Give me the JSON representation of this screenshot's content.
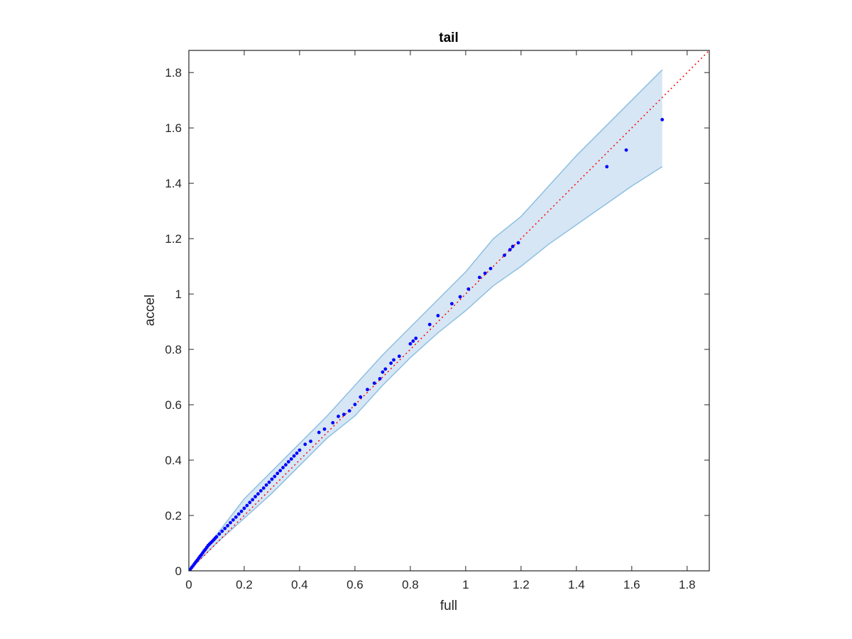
{
  "chart_data": {
    "type": "scatter",
    "title": "tail",
    "xlabel": "full",
    "ylabel": "accel",
    "xlim": [
      0,
      1.88
    ],
    "ylim": [
      0,
      1.88
    ],
    "xticks": [
      "0",
      "0.2",
      "0.4",
      "0.6",
      "0.8",
      "1",
      "1.2",
      "1.4",
      "1.6",
      "1.8"
    ],
    "yticks": [
      "0",
      "0.2",
      "0.4",
      "0.6",
      "0.8",
      "1",
      "1.2",
      "1.4",
      "1.6",
      "1.8"
    ],
    "grid": false,
    "colors": {
      "points": "#0000ff",
      "reference_line": "#ff0000",
      "band_fill": "#d6e6f4",
      "band_edge": "#8ebfe2"
    },
    "reference_line": {
      "x": [
        0,
        1.88
      ],
      "y": [
        0,
        1.88
      ]
    },
    "band": {
      "x": [
        0,
        0.05,
        0.1,
        0.2,
        0.3,
        0.4,
        0.5,
        0.6,
        0.7,
        0.8,
        0.9,
        1.0,
        1.1,
        1.2,
        1.3,
        1.4,
        1.5,
        1.6,
        1.71
      ],
      "upper": [
        0,
        0.07,
        0.13,
        0.26,
        0.36,
        0.46,
        0.56,
        0.67,
        0.78,
        0.88,
        0.98,
        1.08,
        1.2,
        1.28,
        1.39,
        1.5,
        1.6,
        1.7,
        1.81
      ],
      "lower": [
        0,
        0.05,
        0.1,
        0.19,
        0.28,
        0.38,
        0.48,
        0.56,
        0.67,
        0.77,
        0.86,
        0.94,
        1.03,
        1.1,
        1.18,
        1.25,
        1.32,
        1.39,
        1.46
      ]
    },
    "series": [
      {
        "x": [
          0.005,
          0.01,
          0.015,
          0.02,
          0.025,
          0.03,
          0.035,
          0.04,
          0.045,
          0.05,
          0.055,
          0.06,
          0.065,
          0.07,
          0.075,
          0.08,
          0.085,
          0.09,
          0.095,
          0.1,
          0.11,
          0.12,
          0.13,
          0.14,
          0.15,
          0.16,
          0.17,
          0.18,
          0.19,
          0.2,
          0.21,
          0.22,
          0.23,
          0.24,
          0.25,
          0.26,
          0.27,
          0.28,
          0.29,
          0.3,
          0.31,
          0.32,
          0.33,
          0.34,
          0.35,
          0.36,
          0.37,
          0.38,
          0.39,
          0.4,
          0.42,
          0.44,
          0.47,
          0.49,
          0.52,
          0.54,
          0.56,
          0.58,
          0.6,
          0.62,
          0.645,
          0.67,
          0.69,
          0.7,
          0.71,
          0.73,
          0.74,
          0.76,
          0.8,
          0.81,
          0.82,
          0.87,
          0.9,
          0.95,
          0.98,
          1.01,
          1.05,
          1.07,
          1.09,
          1.14,
          1.16,
          1.17,
          1.19,
          1.51,
          1.58,
          1.71
        ],
        "y": [
          0.005,
          0.012,
          0.018,
          0.025,
          0.032,
          0.038,
          0.045,
          0.052,
          0.058,
          0.065,
          0.072,
          0.078,
          0.085,
          0.092,
          0.097,
          0.102,
          0.107,
          0.112,
          0.118,
          0.123,
          0.133,
          0.143,
          0.153,
          0.163,
          0.174,
          0.184,
          0.194,
          0.205,
          0.215,
          0.226,
          0.236,
          0.247,
          0.257,
          0.268,
          0.278,
          0.289,
          0.299,
          0.31,
          0.32,
          0.331,
          0.341,
          0.352,
          0.362,
          0.373,
          0.383,
          0.394,
          0.404,
          0.415,
          0.425,
          0.436,
          0.457,
          0.468,
          0.5,
          0.512,
          0.535,
          0.558,
          0.565,
          0.578,
          0.601,
          0.628,
          0.655,
          0.678,
          0.694,
          0.718,
          0.729,
          0.75,
          0.762,
          0.775,
          0.82,
          0.83,
          0.84,
          0.89,
          0.922,
          0.965,
          0.99,
          1.018,
          1.06,
          1.075,
          1.092,
          1.14,
          1.16,
          1.172,
          1.185,
          1.46,
          1.52,
          1.63
        ]
      }
    ]
  }
}
